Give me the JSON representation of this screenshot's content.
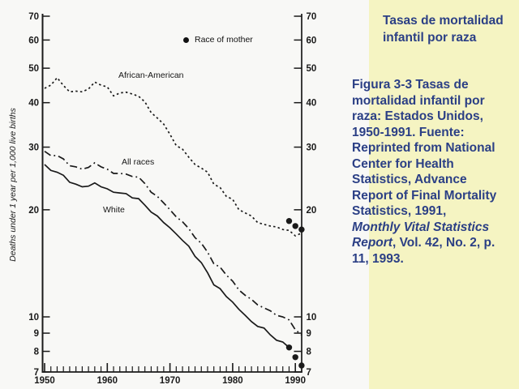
{
  "colors": {
    "slide_background": "#f8f8f6",
    "panel_background": "#f5f4c2",
    "panel_text": "#2b3f85",
    "chart_ink": "#1a1a1a"
  },
  "panel": {
    "title_lines": [
      "Tasas de mortalidad",
      "infantil por raza"
    ],
    "caption_lines": [
      [
        {
          "t": "Figura 3-3 Tasas de"
        }
      ],
      [
        {
          "t": "mortalidad infantil por"
        }
      ],
      [
        {
          "t": "raza: Estados Unidos,"
        }
      ],
      [
        {
          "t": "1950-1991. Fuente:"
        }
      ],
      [
        {
          "t": "Reprinted from National"
        }
      ],
      [
        {
          "t": "Center for Health"
        }
      ],
      [
        {
          "t": "Statistics, Advance"
        }
      ],
      [
        {
          "t": "Report of Final Mortality"
        }
      ],
      [
        {
          "t": "Statistics, 1991,"
        }
      ],
      [
        {
          "t": "Monthly Vital Statistics",
          "i": true
        }
      ],
      [
        {
          "t": "Report",
          "i": true
        },
        {
          "t": ", Vol. 42, No. 2, p."
        }
      ],
      [
        {
          "t": "11, 1993."
        }
      ]
    ]
  },
  "chart_data": {
    "type": "line",
    "title": "",
    "xlabel": "",
    "ylabel": "Deaths under 1 year per 1,000 live births",
    "y_scale": "log",
    "ylim": [
      7,
      70
    ],
    "xlim": [
      1950,
      1991
    ],
    "y_ticks": [
      70,
      60,
      50,
      40,
      30,
      20,
      10,
      9,
      8,
      7
    ],
    "x_ticks": [
      1950,
      1960,
      1970,
      1980,
      1990
    ],
    "x_minor_tick_every": 1,
    "grid": false,
    "legend": {
      "marker": "filled-circle",
      "label": "Race of mother",
      "position": "upper-right-inside"
    },
    "x_start_year": 1950,
    "series": [
      {
        "name": "African-American",
        "line_style": "dotted",
        "line_end_year": 1991,
        "values": [
          43.9,
          44.8,
          47.0,
          44.7,
          42.9,
          43.1,
          42.9,
          43.7,
          45.7,
          44.8,
          44.3,
          41.8,
          42.6,
          42.8,
          42.3,
          41.7,
          40.2,
          37.5,
          36.2,
          34.8,
          32.6,
          30.3,
          29.6,
          28.1,
          26.8,
          26.2,
          25.5,
          23.6,
          23.1,
          21.8,
          21.4,
          20.0,
          19.6,
          19.2,
          18.4,
          18.2,
          18.0,
          17.9,
          17.6,
          17.5,
          16.9,
          17.2
        ]
      },
      {
        "name": "All races",
        "line_style": "dashdot",
        "line_end_year": 1991,
        "values": [
          29.2,
          28.4,
          28.4,
          27.8,
          26.6,
          26.4,
          26.0,
          26.3,
          27.1,
          26.4,
          26.0,
          25.3,
          25.3,
          25.2,
          24.8,
          24.7,
          23.7,
          22.4,
          21.8,
          20.9,
          20.0,
          19.1,
          18.5,
          17.7,
          16.7,
          16.1,
          15.2,
          14.1,
          13.8,
          13.1,
          12.6,
          11.9,
          11.5,
          11.2,
          10.8,
          10.6,
          10.4,
          10.1,
          10.0,
          9.8,
          9.2,
          8.9
        ]
      },
      {
        "name": "White",
        "line_style": "solid",
        "line_end_year": 1989,
        "values": [
          26.8,
          25.8,
          25.5,
          25.0,
          23.9,
          23.6,
          23.2,
          23.3,
          23.8,
          23.2,
          22.9,
          22.4,
          22.3,
          22.2,
          21.6,
          21.5,
          20.6,
          19.7,
          19.2,
          18.4,
          17.8,
          17.1,
          16.4,
          15.8,
          14.8,
          14.2,
          13.3,
          12.3,
          12.0,
          11.4,
          11.0,
          10.5,
          10.1,
          9.7,
          9.4,
          9.3,
          8.9,
          8.6,
          8.5,
          8.2,
          7.7,
          7.3
        ]
      }
    ],
    "race_of_mother_points": [
      {
        "series": "African-American",
        "year": 1989,
        "value": 18.6
      },
      {
        "series": "African-American",
        "year": 1990,
        "value": 18.0
      },
      {
        "series": "African-American",
        "year": 1991,
        "value": 17.6
      },
      {
        "series": "White",
        "year": 1989,
        "value": 8.2
      },
      {
        "series": "White",
        "year": 1990,
        "value": 7.7
      },
      {
        "series": "White",
        "year": 1991,
        "value": 7.3
      }
    ]
  }
}
